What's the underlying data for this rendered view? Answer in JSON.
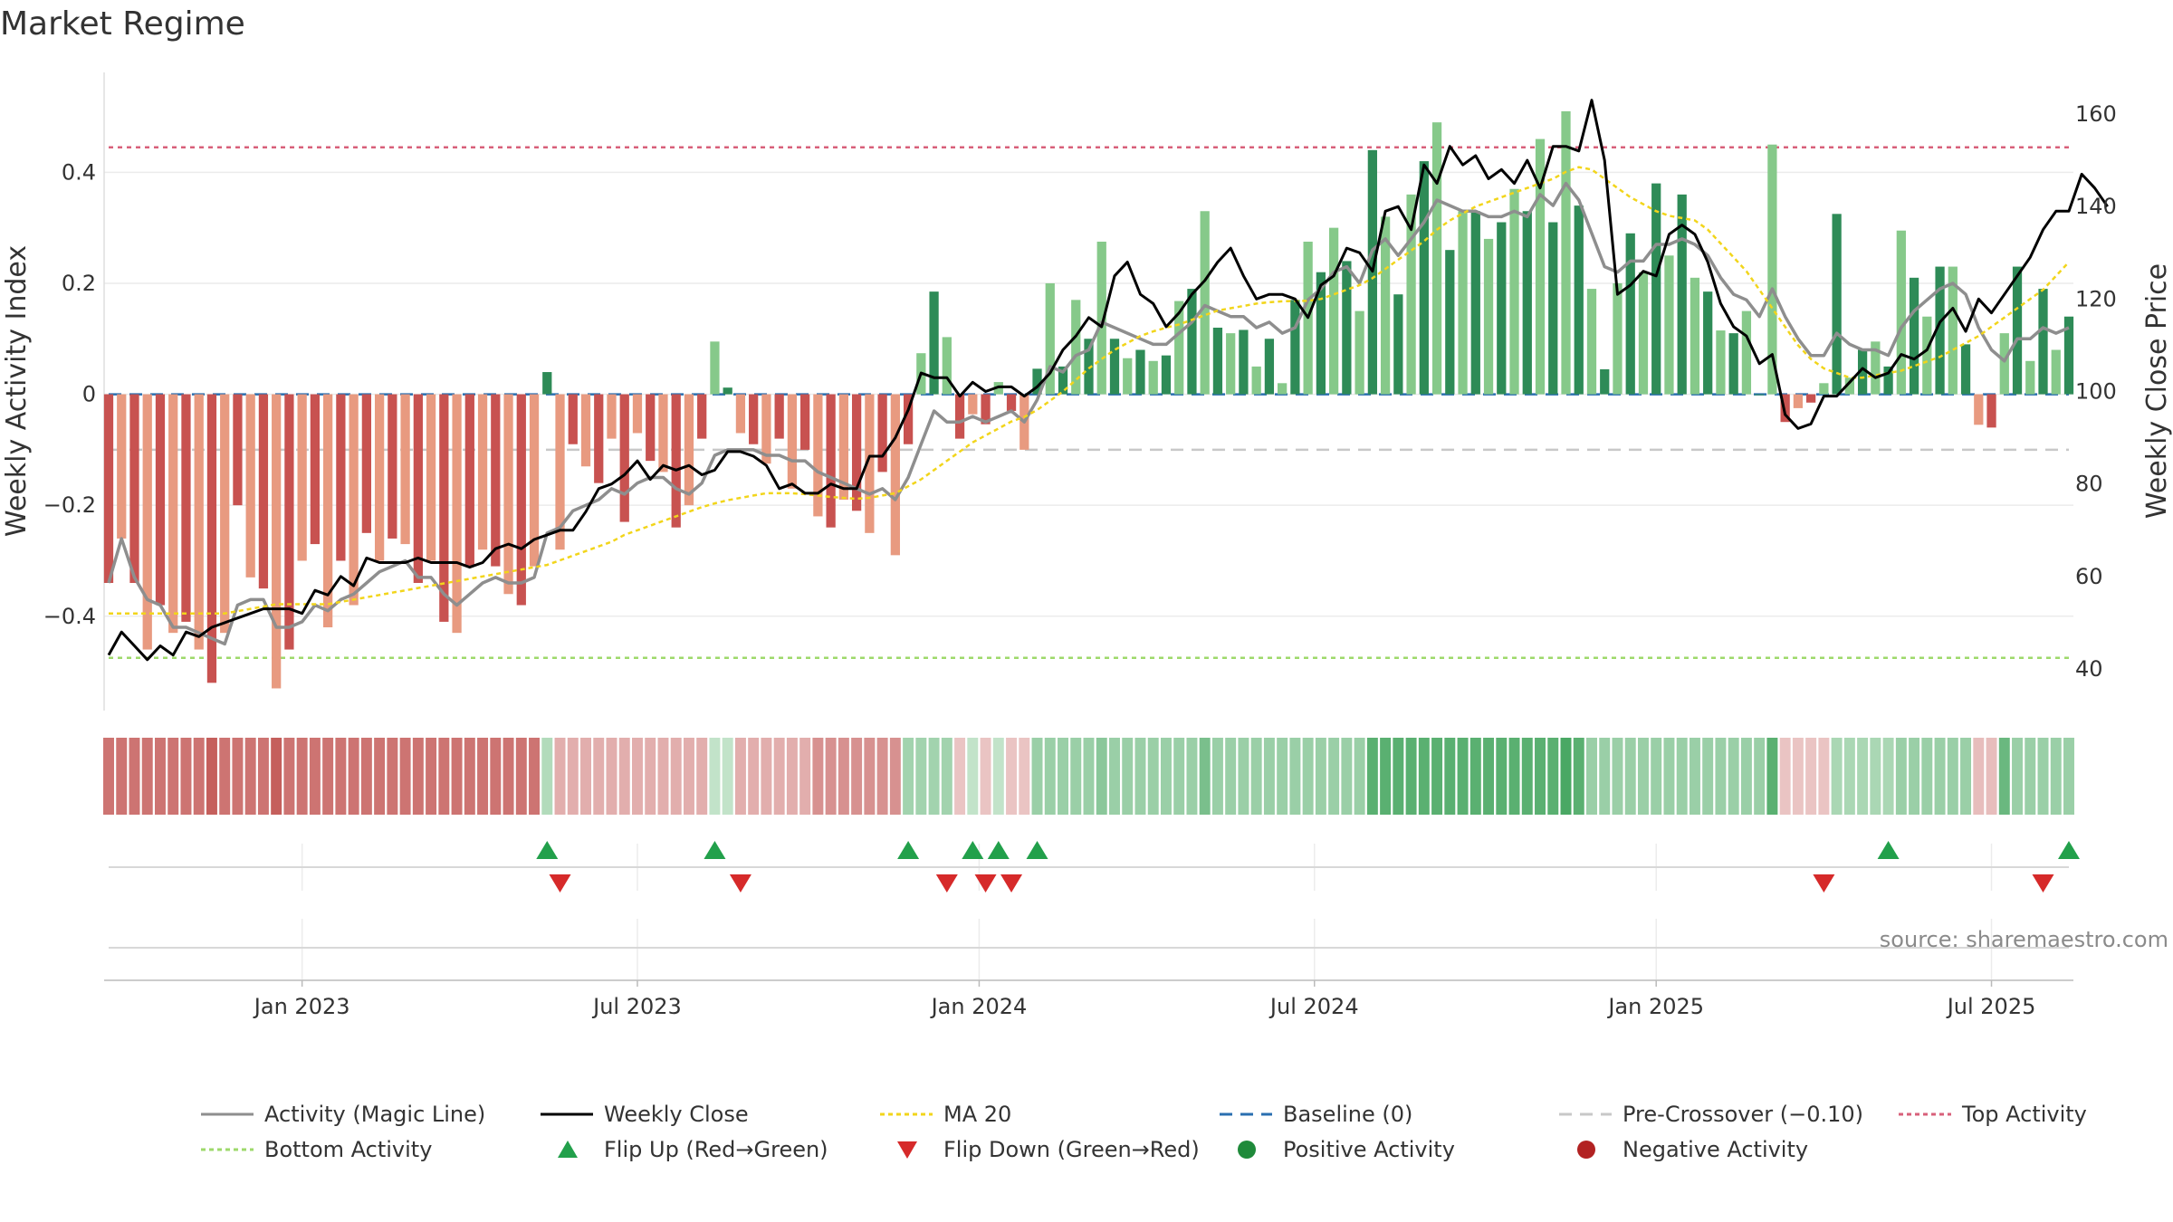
{
  "chart_data": {
    "type": "bar",
    "title": "Market Regime",
    "ylabel": "Weekly Activity Index",
    "y2label": "Weekly Close Price",
    "source": "source: sharemaestro.com",
    "ylim": [
      -0.57,
      0.58
    ],
    "y2lim": [
      31,
      169
    ],
    "yticks": [
      0.4,
      0.2,
      0,
      -0.2,
      -0.4
    ],
    "ytick_labels": [
      "0.4",
      "0.2",
      "0",
      "−0.2",
      "−0.4"
    ],
    "y2ticks": [
      160,
      140,
      120,
      100,
      80,
      60,
      40
    ],
    "y2tick_labels": [
      "160",
      "140",
      "120",
      "100",
      "80",
      "60",
      "40"
    ],
    "xticks": [
      {
        "label": "Jan 2023",
        "week": 15
      },
      {
        "label": "Jul 2023",
        "week": 41
      },
      {
        "label": "Jan 2024",
        "week": 67.5
      },
      {
        "label": "Jul 2024",
        "week": 93.5
      },
      {
        "label": "Jan 2025",
        "week": 120
      },
      {
        "label": "Jul 2025",
        "week": 146
      }
    ],
    "top_activity": 0.445,
    "bottom_activity": -0.475,
    "pre_crossover": -0.1,
    "activity": [
      -0.34,
      -0.26,
      -0.34,
      -0.46,
      -0.38,
      -0.43,
      -0.41,
      -0.46,
      -0.52,
      -0.43,
      -0.2,
      -0.33,
      -0.35,
      -0.53,
      -0.46,
      -0.3,
      -0.27,
      -0.42,
      -0.3,
      -0.38,
      -0.25,
      -0.3,
      -0.26,
      -0.27,
      -0.34,
      -0.3,
      -0.41,
      -0.43,
      -0.31,
      -0.28,
      -0.31,
      -0.36,
      -0.38,
      -0.31,
      0.04,
      -0.28,
      -0.09,
      -0.13,
      -0.16,
      -0.08,
      -0.23,
      -0.07,
      -0.12,
      -0.14,
      -0.24,
      -0.2,
      -0.08,
      0.095,
      0.012,
      -0.07,
      -0.09,
      -0.125,
      -0.08,
      -0.17,
      -0.1,
      -0.22,
      -0.24,
      -0.19,
      -0.21,
      -0.25,
      -0.14,
      -0.29,
      -0.09,
      0.074,
      0.185,
      0.103,
      -0.08,
      -0.036,
      -0.054,
      0.022,
      -0.03,
      -0.1,
      0.046,
      0.2,
      0.05,
      0.17,
      0.1,
      0.275,
      0.1,
      0.065,
      0.08,
      0.06,
      0.07,
      0.168,
      0.19,
      0.33,
      0.12,
      0.11,
      0.116,
      0.05,
      0.1,
      0.02,
      0.17,
      0.275,
      0.22,
      0.3,
      0.24,
      0.15,
      0.44,
      0.32,
      0.18,
      0.36,
      0.42,
      0.49,
      0.26,
      0.33,
      0.33,
      0.28,
      0.31,
      0.37,
      0.33,
      0.46,
      0.31,
      0.51,
      0.34,
      0.19,
      0.045,
      0.2,
      0.29,
      0.22,
      0.38,
      0.25,
      0.36,
      0.21,
      0.185,
      0.115,
      0.11,
      0.15,
      0,
      0.45,
      -0.05,
      -0.025,
      -0.015,
      0.02,
      0.325,
      0.03,
      0.08,
      0.095,
      0.05,
      0.295,
      0.21,
      0.14,
      0.23,
      0.23,
      0.09,
      -0.055,
      -0.06,
      0.11,
      0.23,
      0.06,
      0.19,
      0.08,
      0.14
    ],
    "activity_line": [
      -0.34,
      -0.26,
      -0.33,
      -0.37,
      -0.38,
      -0.42,
      -0.42,
      -0.43,
      -0.44,
      -0.45,
      -0.38,
      -0.37,
      -0.37,
      -0.42,
      -0.42,
      -0.41,
      -0.38,
      -0.39,
      -0.37,
      -0.36,
      -0.34,
      -0.32,
      -0.31,
      -0.3,
      -0.33,
      -0.33,
      -0.36,
      -0.38,
      -0.36,
      -0.34,
      -0.33,
      -0.34,
      -0.34,
      -0.33,
      -0.25,
      -0.24,
      -0.21,
      -0.2,
      -0.19,
      -0.17,
      -0.18,
      -0.16,
      -0.15,
      -0.15,
      -0.17,
      -0.18,
      -0.16,
      -0.11,
      -0.1,
      -0.1,
      -0.1,
      -0.11,
      -0.11,
      -0.12,
      -0.12,
      -0.14,
      -0.15,
      -0.16,
      -0.17,
      -0.18,
      -0.17,
      -0.19,
      -0.15,
      -0.09,
      -0.03,
      -0.05,
      -0.05,
      -0.04,
      -0.05,
      -0.04,
      -0.03,
      -0.05,
      -0.01,
      0.05,
      0.04,
      0.07,
      0.08,
      0.13,
      0.12,
      0.11,
      0.1,
      0.09,
      0.09,
      0.11,
      0.13,
      0.16,
      0.15,
      0.14,
      0.14,
      0.12,
      0.13,
      0.11,
      0.12,
      0.17,
      0.19,
      0.22,
      0.23,
      0.2,
      0.26,
      0.28,
      0.25,
      0.28,
      0.31,
      0.35,
      0.34,
      0.33,
      0.33,
      0.32,
      0.32,
      0.33,
      0.32,
      0.36,
      0.34,
      0.38,
      0.35,
      0.29,
      0.23,
      0.22,
      0.24,
      0.24,
      0.27,
      0.27,
      0.28,
      0.27,
      0.25,
      0.21,
      0.18,
      0.17,
      0.14,
      0.19,
      0.14,
      0.1,
      0.07,
      0.07,
      0.11,
      0.09,
      0.08,
      0.08,
      0.07,
      0.12,
      0.15,
      0.17,
      0.19,
      0.2,
      0.18,
      0.12,
      0.08,
      0.06,
      0.1,
      0.1,
      0.12,
      0.11,
      0.12
    ],
    "close": [
      43,
      48,
      45,
      42,
      45,
      43,
      48,
      47,
      49,
      50,
      51,
      52,
      53,
      53,
      53,
      52,
      57,
      56,
      60,
      58,
      64,
      63,
      63,
      63,
      64,
      63,
      63,
      63,
      62,
      63,
      66,
      67,
      66,
      68,
      69,
      70,
      70,
      74,
      79,
      80,
      82,
      85,
      81,
      84,
      83,
      84,
      82,
      83,
      87,
      87,
      86,
      84,
      79,
      80,
      78,
      78,
      80,
      79,
      79,
      86,
      86,
      90,
      96,
      104,
      103,
      103,
      99,
      102,
      100,
      101,
      101,
      99,
      101,
      104,
      109,
      112,
      116,
      114,
      125,
      128,
      121,
      119,
      114,
      117,
      121,
      124,
      128,
      131,
      125,
      120,
      121,
      121,
      120,
      116,
      123,
      125,
      131,
      130,
      126,
      139,
      140,
      135,
      149,
      145,
      153,
      149,
      151,
      146,
      148,
      145,
      150,
      144,
      153,
      153,
      152,
      163,
      150,
      121,
      123,
      126,
      125,
      134,
      136,
      134,
      128,
      119,
      114,
      112,
      106,
      108,
      95,
      92,
      93,
      99,
      99,
      102,
      105,
      103,
      104,
      108,
      107,
      109,
      115,
      118,
      113,
      120,
      117,
      121,
      125,
      129,
      135,
      139,
      139,
      147,
      144,
      140
    ],
    "ma20": [
      52,
      52,
      52,
      52,
      52,
      52,
      52,
      52,
      52,
      52,
      52.5,
      53,
      53.5,
      54,
      54,
      54,
      54,
      54,
      54.5,
      55,
      55.5,
      56,
      56.5,
      57,
      57.5,
      58,
      58.5,
      59,
      59.5,
      60,
      60.5,
      61,
      61.5,
      62,
      62.5,
      63.5,
      64.5,
      65.5,
      66.5,
      67.5,
      69,
      70,
      71,
      72,
      73,
      74,
      75,
      75.8,
      76.5,
      77,
      77.5,
      78,
      78,
      78,
      77.8,
      77.5,
      77.2,
      77,
      76.8,
      77,
      77.5,
      78,
      79.5,
      81,
      83,
      85,
      87,
      89,
      90.5,
      92,
      93.5,
      94.5,
      96,
      98,
      100,
      102.5,
      105,
      107,
      109,
      110.5,
      112,
      113,
      113.8,
      114.5,
      115.5,
      116.5,
      117.5,
      118,
      118.5,
      119,
      119.3,
      119.5,
      119.6,
      119.6,
      120,
      121,
      122,
      123,
      124.5,
      126.5,
      128.5,
      130.5,
      132.5,
      135,
      137,
      138.5,
      140,
      141,
      142,
      143,
      144,
      145,
      146,
      147.5,
      148.5,
      148,
      146,
      144,
      142,
      140.5,
      139,
      138,
      137.5,
      137,
      135,
      132,
      129,
      126,
      122,
      118,
      114,
      110,
      107,
      105,
      104,
      103,
      103,
      103.5,
      104,
      104.5,
      105.5,
      106.5,
      107.5,
      109,
      110.5,
      112,
      114,
      116,
      118,
      120,
      122,
      125,
      128
    ],
    "flips_up": [
      34,
      47,
      62,
      67,
      69,
      72,
      138,
      152
    ],
    "flips_down": [
      35,
      49,
      65,
      68,
      70,
      133,
      150
    ],
    "regime_strength": [
      -0.75,
      -0.75,
      -0.75,
      -0.75,
      -0.75,
      -0.75,
      -0.75,
      -0.75,
      -0.9,
      -0.75,
      -0.75,
      -0.75,
      -0.75,
      -0.9,
      -0.75,
      -0.75,
      -0.75,
      -0.75,
      -0.75,
      -0.75,
      -0.75,
      -0.75,
      -0.75,
      -0.75,
      -0.75,
      -0.75,
      -0.75,
      -0.75,
      -0.75,
      -0.75,
      -0.75,
      -0.75,
      -0.75,
      -0.75,
      0.35,
      -0.35,
      -0.35,
      -0.35,
      -0.35,
      -0.35,
      -0.35,
      -0.35,
      -0.35,
      -0.35,
      -0.35,
      -0.35,
      -0.35,
      0.25,
      0.25,
      -0.35,
      -0.35,
      -0.35,
      -0.35,
      -0.35,
      -0.35,
      -0.55,
      -0.55,
      -0.55,
      -0.55,
      -0.55,
      -0.55,
      -0.55,
      0.45,
      0.45,
      0.45,
      0.45,
      -0.2,
      0.25,
      -0.2,
      0.25,
      -0.2,
      -0.2,
      0.5,
      0.5,
      0.5,
      0.5,
      0.5,
      0.6,
      0.5,
      0.5,
      0.5,
      0.5,
      0.5,
      0.5,
      0.5,
      0.7,
      0.5,
      0.5,
      0.5,
      0.5,
      0.5,
      0.5,
      0.5,
      0.5,
      0.5,
      0.5,
      0.5,
      0.5,
      0.9,
      0.9,
      0.9,
      0.9,
      0.9,
      0.9,
      0.9,
      0.9,
      0.9,
      0.9,
      0.9,
      0.9,
      0.9,
      0.9,
      0.9,
      1.0,
      0.9,
      0.5,
      0.5,
      0.5,
      0.5,
      0.5,
      0.5,
      0.5,
      0.5,
      0.5,
      0.5,
      0.5,
      0.5,
      0.5,
      0.5,
      0.9,
      -0.2,
      -0.2,
      -0.2,
      -0.2,
      0.4,
      0.4,
      0.4,
      0.4,
      0.4,
      0.5,
      0.5,
      0.5,
      0.5,
      0.5,
      0.5,
      -0.25,
      -0.25,
      0.8,
      0.5,
      0.5,
      0.5,
      0.5,
      0.5
    ],
    "legend": [
      {
        "label": "Activity (Magic Line)",
        "kind": "line",
        "color": "#8e8e8e",
        "dash": "solid"
      },
      {
        "label": "Weekly Close",
        "kind": "line",
        "color": "#000000",
        "dash": "solid"
      },
      {
        "label": "MA 20",
        "kind": "line",
        "color": "#f2d51b",
        "dash": "dotted"
      },
      {
        "label": "Baseline (0)",
        "kind": "line",
        "color": "#2a6fb0",
        "dash": "dashed"
      },
      {
        "label": "Pre-Crossover (−0.10)",
        "kind": "line",
        "color": "#c8c8c8",
        "dash": "dashed"
      },
      {
        "label": "Top Activity",
        "kind": "line",
        "color": "#d8607a",
        "dash": "dotted"
      },
      {
        "label": "Bottom Activity",
        "kind": "line",
        "color": "#9ed96b",
        "dash": "dotted"
      },
      {
        "label": "Flip Up (Red→Green)",
        "kind": "tri-up",
        "color": "#22a04b"
      },
      {
        "label": "Flip Down (Green→Red)",
        "kind": "tri-down",
        "color": "#d62a2a"
      },
      {
        "label": "Positive Activity",
        "kind": "dot",
        "color": "#1f8a3a"
      },
      {
        "label": "Negative Activity",
        "kind": "dot",
        "color": "#b22222"
      }
    ],
    "colors": {
      "pos_dark": "#2e8b57",
      "pos_light": "#86c98a",
      "neg_dark": "#c85250",
      "neg_light": "#e89a80",
      "close": "#000000",
      "activity_line": "#8e8e8e",
      "ma20": "#f2d51b",
      "baseline": "#2a6fb0",
      "pre_crossover": "#c8c8c8",
      "top": "#d8607a",
      "bottom": "#9ed96b",
      "flip_up": "#22a04b",
      "flip_down": "#d62a2a"
    }
  }
}
